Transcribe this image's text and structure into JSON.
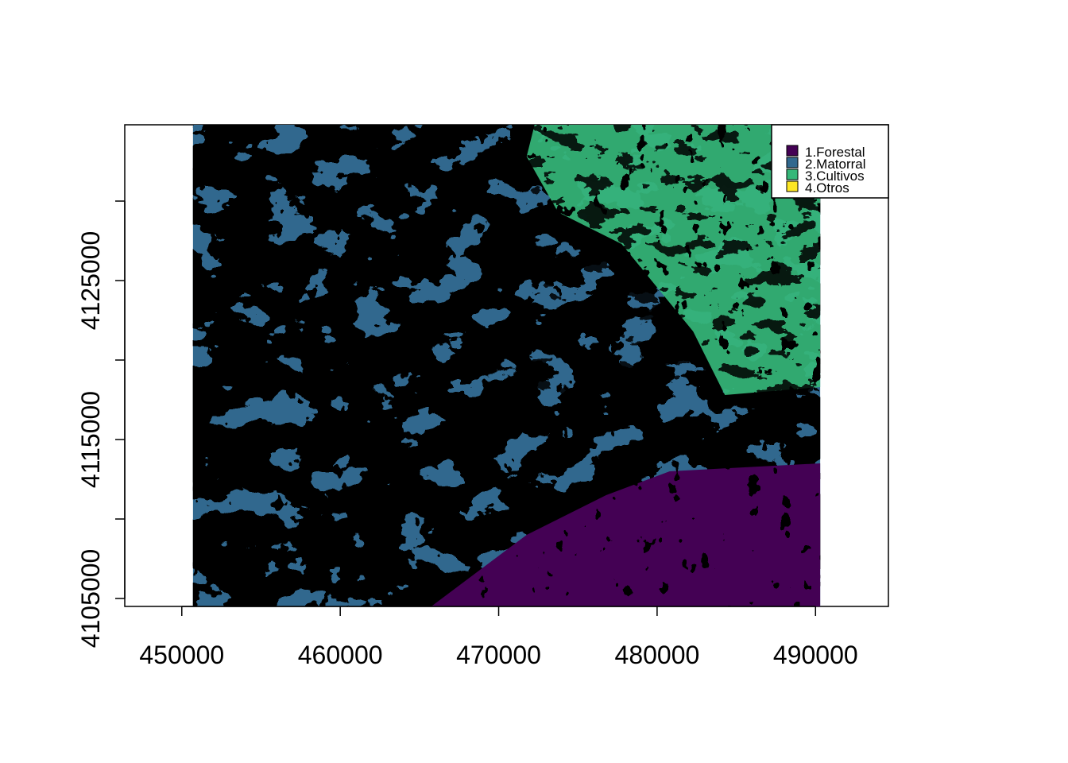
{
  "map": {
    "type": "raster-classification",
    "classes": [
      {
        "label": "1.Forestal",
        "color": "#440154"
      },
      {
        "label": "2.Matorral",
        "color": "#31688e"
      },
      {
        "label": "3.Cultivos",
        "color": "#35b779"
      },
      {
        "label": "4.Otros",
        "color": "#fde725"
      }
    ],
    "legend_position": "top-right",
    "x_axis": {
      "ticks": [
        450000,
        460000,
        470000,
        480000,
        490000
      ],
      "labels": [
        "450000",
        "460000",
        "470000",
        "480000",
        "490000"
      ],
      "range": [
        446400,
        494600
      ]
    },
    "y_axis": {
      "ticks": [
        4105000,
        4110000,
        4115000,
        4120000,
        4125000,
        4130000
      ],
      "labels": [
        "4105000",
        "",
        "4115000",
        "",
        "4125000",
        ""
      ],
      "range": [
        4104500,
        4134800
      ]
    },
    "raster_extent": {
      "xmin": 450700,
      "xmax": 490300,
      "ymin": 4104500,
      "ymax": 4134800
    }
  }
}
